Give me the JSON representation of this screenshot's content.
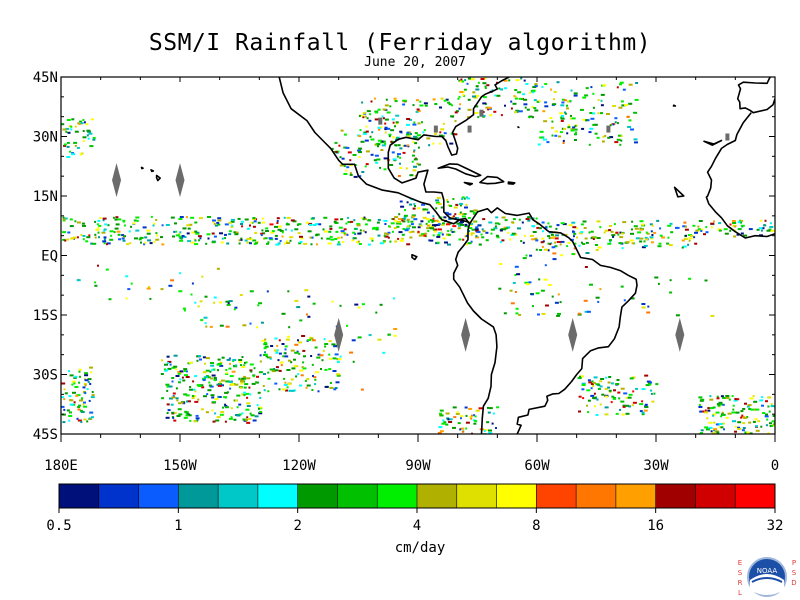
{
  "title": "SSM/I Rainfall (Ferriday algorithm)",
  "subtitle": "June 20, 2007",
  "map": {
    "lat_labels": [
      "45N",
      "30N",
      "15N",
      "EQ",
      "15S",
      "30S",
      "45S"
    ],
    "lon_labels": [
      "180E",
      "150W",
      "120W",
      "90W",
      "60W",
      "30W",
      "0"
    ],
    "extent": {
      "lon_min": -180,
      "lon_max": 0,
      "lat_min": -45,
      "lat_max": 45
    }
  },
  "colorbar": {
    "unit": "cm/day",
    "tick_labels": [
      "0.5",
      "1",
      "2",
      "4",
      "8",
      "16",
      "32"
    ],
    "colors": [
      "#00107a",
      "#0033cc",
      "#0a5cff",
      "#00999a",
      "#00c8c8",
      "#00ffff",
      "#009900",
      "#00c000",
      "#00ee00",
      "#b0b000",
      "#e0e000",
      "#ffff00",
      "#ff4400",
      "#ff7700",
      "#ffa000",
      "#a00000",
      "#d00000",
      "#ff0000"
    ]
  },
  "logo": {
    "left_letters": [
      "E",
      "S",
      "R",
      "L"
    ],
    "right_letters": [
      "P",
      "S",
      "D"
    ],
    "badge": "NOAA"
  }
}
